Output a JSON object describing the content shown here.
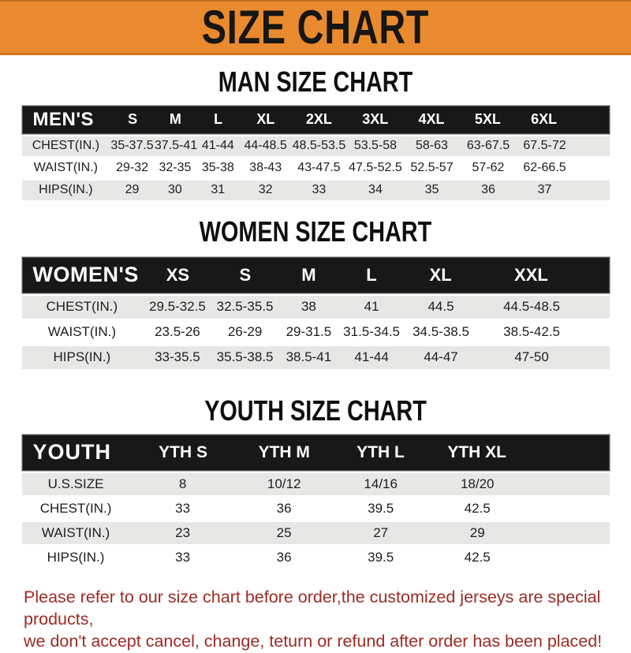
{
  "banner": {
    "title": "SIZE CHART"
  },
  "sections": [
    {
      "id": "men",
      "title": "MAN SIZE CHART",
      "header": {
        "label": "MEN'S",
        "sizes": [
          "S",
          "M",
          "L",
          "XL",
          "2XL",
          "3XL",
          "4XL",
          "5XL",
          "6XL"
        ]
      },
      "rows": [
        {
          "label": "CHEST(IN.)",
          "values": [
            "35-37.5",
            "37.5-41",
            "41-44",
            "44-48.5",
            "48.5-53.5",
            "53.5-58",
            "58-63",
            "63-67.5",
            "67.5-72"
          ]
        },
        {
          "label": "WAIST(IN.)",
          "values": [
            "29-32",
            "32-35",
            "35-38",
            "38-43",
            "43-47.5",
            "47.5-52.5",
            "52.5-57",
            "57-62",
            "62-66.5"
          ]
        },
        {
          "label": "HIPS(IN.)",
          "values": [
            "29",
            "30",
            "31",
            "32",
            "33",
            "34",
            "35",
            "36",
            "37"
          ]
        }
      ]
    },
    {
      "id": "women",
      "title": "WOMEN SIZE CHART",
      "header": {
        "label": "WOMEN'S",
        "sizes": [
          "XS",
          "S",
          "M",
          "L",
          "XL",
          "XXL"
        ]
      },
      "rows": [
        {
          "label": "CHEST(IN.)",
          "values": [
            "29.5-32.5",
            "32.5-35.5",
            "38",
            "41",
            "44.5",
            "44.5-48.5"
          ]
        },
        {
          "label": "WAIST(IN.)",
          "values": [
            "23.5-26",
            "26-29",
            "29-31.5",
            "31.5-34.5",
            "34.5-38.5",
            "38.5-42.5"
          ]
        },
        {
          "label": "HIPS(IN.)",
          "values": [
            "33-35.5",
            "35.5-38.5",
            "38.5-41",
            "41-44",
            "44-47",
            "47-50"
          ]
        }
      ]
    },
    {
      "id": "youth",
      "title": "YOUTH SIZE CHART",
      "header": {
        "label": "YOUTH",
        "sizes": [
          "YTH S",
          "YTH M",
          "YTH L",
          "YTH XL"
        ]
      },
      "rows": [
        {
          "label": "U.S.SIZE",
          "values": [
            "8",
            "10/12",
            "14/16",
            "18/20"
          ]
        },
        {
          "label": "CHEST(IN.)",
          "values": [
            "33",
            "36",
            "39.5",
            "42.5"
          ]
        },
        {
          "label": "WAIST(IN.)",
          "values": [
            "23",
            "25",
            "27",
            "29"
          ]
        },
        {
          "label": "HIPS(IN.)",
          "values": [
            "33",
            "36",
            "39.5",
            "42.5"
          ]
        }
      ]
    }
  ],
  "footer": {
    "line1": "Please refer to our size chart before order,the customized jerseys are special products,",
    "line2": "we don't accept cancel, change, teturn or refund after order has been placed!"
  },
  "colors": {
    "banner_bg": "#EA8A2E",
    "banner_edge": "#D9771C",
    "bar_bg": "#181818",
    "row_alt": "#E7E7E5",
    "footer_text": "#9E2A23"
  }
}
